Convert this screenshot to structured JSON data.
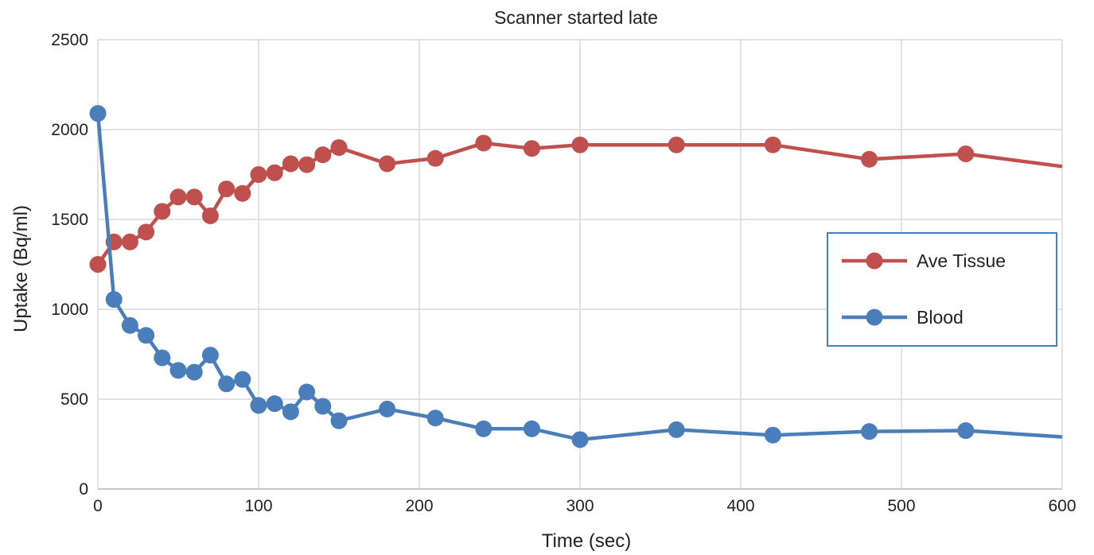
{
  "chart_data": {
    "type": "line",
    "title": "Scanner started late",
    "xlabel": "Time (sec)",
    "ylabel": "Uptake (Bq/ml)",
    "xlim": [
      0,
      600
    ],
    "ylim": [
      0,
      2500
    ],
    "xticks": [
      0,
      100,
      200,
      300,
      400,
      500,
      600
    ],
    "yticks": [
      0,
      500,
      1000,
      1500,
      2000,
      2500
    ],
    "grid": true,
    "legend_position": "right",
    "series": [
      {
        "name": "Ave Tissue",
        "color": "#c0504d",
        "x": [
          0,
          10,
          20,
          30,
          40,
          50,
          60,
          70,
          80,
          90,
          100,
          110,
          120,
          130,
          140,
          150,
          180,
          210,
          240,
          270,
          300,
          360,
          420,
          480,
          540,
          600
        ],
        "y": [
          1250,
          1375,
          1375,
          1430,
          1545,
          1625,
          1625,
          1520,
          1670,
          1645,
          1750,
          1760,
          1810,
          1805,
          1860,
          1900,
          1810,
          1840,
          1925,
          1895,
          1915,
          1915,
          1915,
          1835,
          1865,
          1795
        ],
        "markers": [
          true,
          true,
          true,
          true,
          true,
          true,
          true,
          true,
          true,
          true,
          true,
          true,
          true,
          true,
          true,
          true,
          true,
          true,
          true,
          true,
          true,
          true,
          true,
          true,
          true,
          false
        ]
      },
      {
        "name": "Blood",
        "color": "#4a7ebb",
        "x": [
          0,
          10,
          20,
          30,
          40,
          50,
          60,
          70,
          80,
          90,
          100,
          110,
          120,
          130,
          140,
          150,
          180,
          210,
          240,
          270,
          300,
          360,
          420,
          480,
          540,
          600
        ],
        "y": [
          2090,
          1055,
          910,
          855,
          730,
          660,
          650,
          745,
          585,
          610,
          465,
          475,
          430,
          540,
          460,
          380,
          445,
          395,
          335,
          335,
          275,
          330,
          300,
          320,
          325,
          290
        ],
        "markers": [
          true,
          true,
          true,
          true,
          true,
          true,
          true,
          true,
          true,
          true,
          true,
          true,
          true,
          true,
          true,
          true,
          true,
          true,
          true,
          true,
          true,
          true,
          true,
          true,
          true,
          false
        ]
      }
    ]
  }
}
